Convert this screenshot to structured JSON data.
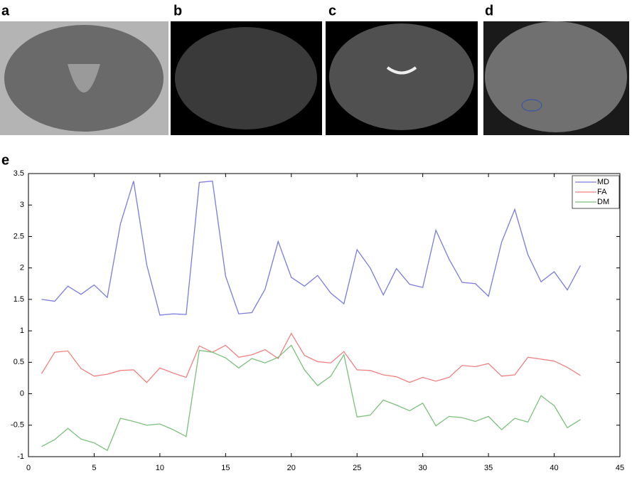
{
  "panels": {
    "labels": [
      "a",
      "b",
      "c",
      "d"
    ]
  },
  "chart_data": {
    "type": "line",
    "panel_label": "e",
    "x": [
      1,
      2,
      3,
      4,
      5,
      6,
      7,
      8,
      9,
      10,
      11,
      12,
      13,
      14,
      15,
      16,
      17,
      18,
      19,
      20,
      21,
      22,
      23,
      24,
      25,
      26,
      27,
      28,
      29,
      30,
      31,
      32,
      33,
      34,
      35,
      36,
      37,
      38,
      39,
      40,
      41,
      42
    ],
    "series": [
      {
        "name": "MD",
        "color": "#7b7be0",
        "values": [
          1.5,
          1.47,
          1.71,
          1.58,
          1.73,
          1.53,
          2.7,
          3.38,
          2.05,
          1.25,
          1.27,
          1.26,
          3.36,
          3.38,
          1.87,
          1.27,
          1.29,
          1.66,
          2.42,
          1.85,
          1.71,
          1.88,
          1.6,
          1.43,
          2.29,
          2.0,
          1.57,
          1.99,
          1.74,
          1.69,
          2.6,
          2.14,
          1.77,
          1.75,
          1.55,
          2.41,
          2.93,
          2.21,
          1.78,
          1.94,
          1.65,
          2.04
        ]
      },
      {
        "name": "FA",
        "color": "#f08080",
        "values": [
          0.32,
          0.66,
          0.68,
          0.4,
          0.28,
          0.31,
          0.37,
          0.38,
          0.18,
          0.41,
          0.33,
          0.26,
          0.76,
          0.66,
          0.77,
          0.58,
          0.62,
          0.7,
          0.56,
          0.96,
          0.61,
          0.51,
          0.49,
          0.67,
          0.38,
          0.37,
          0.3,
          0.27,
          0.18,
          0.26,
          0.2,
          0.26,
          0.45,
          0.43,
          0.48,
          0.28,
          0.3,
          0.58,
          0.55,
          0.52,
          0.42,
          0.29
        ]
      },
      {
        "name": "DM",
        "color": "#7cc07c",
        "values": [
          -0.84,
          -0.73,
          -0.55,
          -0.72,
          -0.78,
          -0.9,
          -0.39,
          -0.44,
          -0.5,
          -0.48,
          -0.57,
          -0.68,
          0.69,
          0.66,
          0.57,
          0.41,
          0.56,
          0.49,
          0.58,
          0.77,
          0.38,
          0.13,
          0.28,
          0.62,
          -0.37,
          -0.34,
          -0.1,
          -0.18,
          -0.27,
          -0.15,
          -0.51,
          -0.36,
          -0.38,
          -0.44,
          -0.36,
          -0.57,
          -0.39,
          -0.45,
          -0.03,
          -0.19,
          -0.54,
          -0.41
        ]
      }
    ],
    "xlim": [
      0,
      45
    ],
    "xticks": [
      0,
      5,
      10,
      15,
      20,
      25,
      30,
      35,
      40,
      45
    ],
    "ylim": [
      -1,
      3.5
    ],
    "yticks": [
      -1,
      -0.5,
      0,
      0.5,
      1,
      1.5,
      2,
      2.5,
      3,
      3.5
    ],
    "legend": "upper right"
  }
}
